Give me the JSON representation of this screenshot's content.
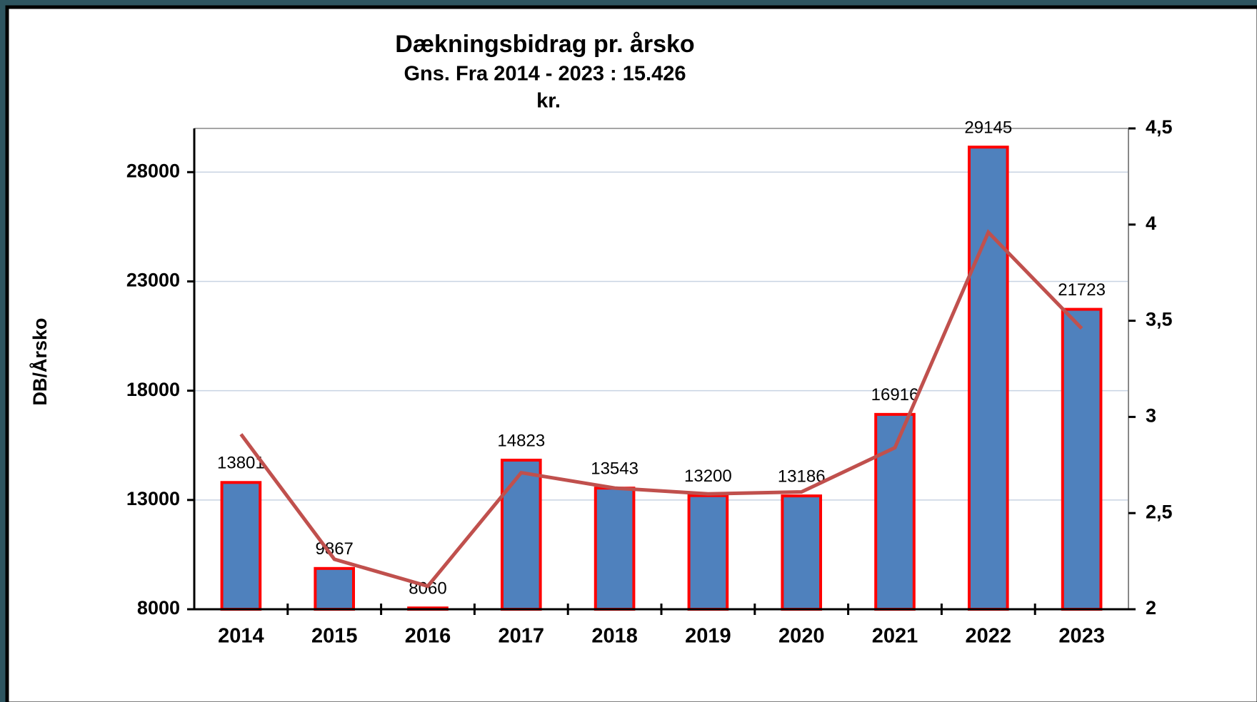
{
  "chart_data": {
    "type": "bar",
    "title": "Dækningsbidrag pr. årsko",
    "subtitle": [
      "Gns.  Fra 2014 - 2023 : 15.426",
      "kr."
    ],
    "y_label": "DB/Årsko",
    "categories": [
      "2014",
      "2015",
      "2016",
      "2017",
      "2018",
      "2019",
      "2020",
      "2021",
      "2022",
      "2023"
    ],
    "series": [
      {
        "type": "bar",
        "color": "#4f81bd",
        "edge_color": "#ff0000",
        "values": [
          13801,
          9867,
          8060,
          14823,
          13543,
          13200,
          13186,
          16916,
          29145,
          21723
        ]
      },
      {
        "type": "line",
        "axis": "y2",
        "color": "#c0504d",
        "values": [
          2.91,
          2.26,
          2.12,
          2.71,
          2.63,
          2.6,
          2.61,
          2.84,
          3.96,
          3.46
        ]
      }
    ],
    "ylim": [
      8000,
      30000
    ],
    "yticks": [
      8000,
      13000,
      18000,
      23000,
      28000
    ],
    "y2lim": [
      2,
      4.5
    ],
    "y2ticks": [
      2,
      {
        "value": 2.5,
        "label": "2,5"
      },
      3,
      {
        "value": 3.5,
        "label": "3,5"
      },
      4,
      {
        "value": 4.5,
        "label": "4,5"
      }
    ],
    "grid": true
  }
}
